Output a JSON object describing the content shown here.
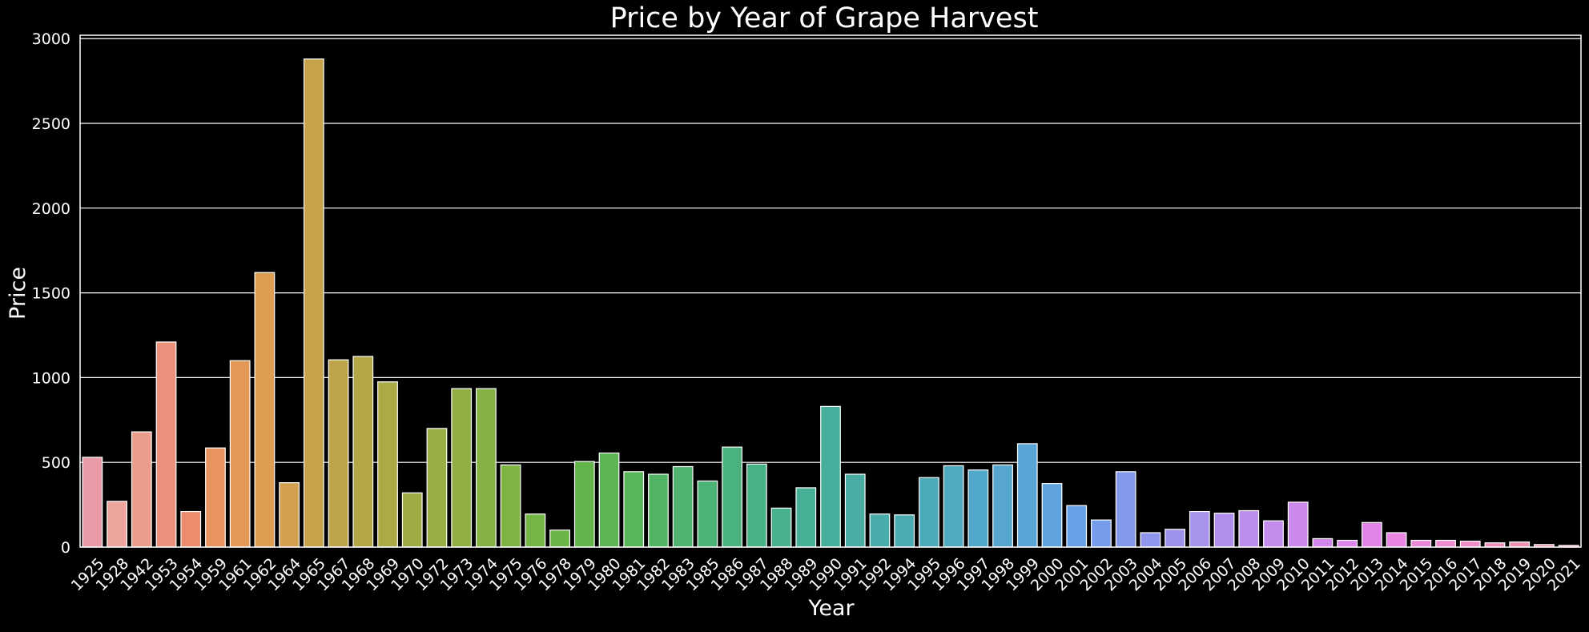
{
  "chart_data": {
    "type": "bar",
    "title": "Price by Year of Grape Harvest",
    "xlabel": "Year",
    "ylabel": "Price",
    "ylim": [
      0,
      3020
    ],
    "yticks": [
      0,
      500,
      1000,
      1500,
      2000,
      2500,
      3000
    ],
    "grid": "horizontal",
    "background": "#000000",
    "grid_color": "#ffffff",
    "bar_edge_color": "#ffffff",
    "categories": [
      "1925",
      "1928",
      "1942",
      "1953",
      "1954",
      "1959",
      "1961",
      "1962",
      "1964",
      "1965",
      "1967",
      "1968",
      "1969",
      "1970",
      "1972",
      "1973",
      "1974",
      "1975",
      "1976",
      "1978",
      "1979",
      "1980",
      "1981",
      "1982",
      "1983",
      "1985",
      "1986",
      "1987",
      "1988",
      "1989",
      "1990",
      "1991",
      "1992",
      "1994",
      "1995",
      "1996",
      "1997",
      "1998",
      "1999",
      "2000",
      "2001",
      "2002",
      "2003",
      "2004",
      "2005",
      "2006",
      "2007",
      "2008",
      "2009",
      "2010",
      "2011",
      "2012",
      "2013",
      "2014",
      "2015",
      "2016",
      "2017",
      "2018",
      "2019",
      "2020",
      "2021"
    ],
    "values": [
      530,
      270,
      680,
      1210,
      210,
      585,
      1100,
      1620,
      380,
      2880,
      1105,
      1125,
      975,
      320,
      700,
      935,
      935,
      485,
      195,
      100,
      505,
      555,
      445,
      430,
      475,
      390,
      590,
      490,
      230,
      350,
      830,
      430,
      195,
      190,
      410,
      480,
      455,
      485,
      610,
      375,
      245,
      160,
      445,
      85,
      105,
      210,
      200,
      215,
      155,
      265,
      50,
      40,
      145,
      85,
      40,
      40,
      35,
      25,
      30,
      15,
      10
    ],
    "colors": [
      "#e99ca8",
      "#eda49c",
      "#ec9c8a",
      "#ec917b",
      "#ec8c6c",
      "#e89460",
      "#e49959",
      "#dd9d52",
      "#d2a14f",
      "#c6a34b",
      "#bda44b",
      "#b3a748",
      "#aaaa47",
      "#a0ab46",
      "#98ae45",
      "#8fae44",
      "#86b145",
      "#7db443",
      "#74b646",
      "#6cb447",
      "#64b44c",
      "#5cb453",
      "#57b55a",
      "#52b566",
      "#4fb36e",
      "#4cb376",
      "#4ab27e",
      "#49b186",
      "#48b08d",
      "#47af95",
      "#47ae9c",
      "#48aca3",
      "#49acab",
      "#4aabb2",
      "#4caab9",
      "#4faac0",
      "#52a8c8",
      "#56a6d0",
      "#5aa5d7",
      "#60a3df",
      "#67a0e7",
      "#759ce8",
      "#8399ea",
      "#9096eb",
      "#9c93eb",
      "#a792ec",
      "#b090ec",
      "#b98eec",
      "#c28bec",
      "#cb89ec",
      "#d387ec",
      "#db85eb",
      "#e283e8",
      "#e886e2",
      "#eb89d9",
      "#ec8bcf",
      "#ed8ec6",
      "#ed90bc",
      "#ed92b3",
      "#ed94aa",
      "#ec97a3"
    ]
  }
}
